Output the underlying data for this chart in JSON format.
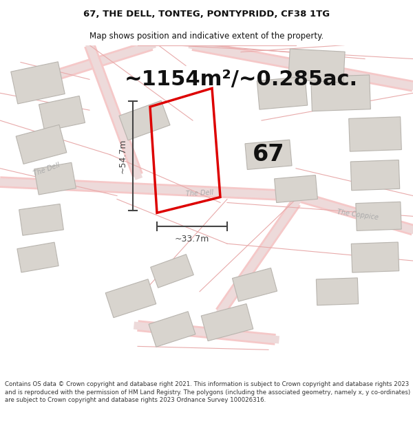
{
  "title_line1": "67, THE DELL, TONTEG, PONTYPRIDD, CF38 1TG",
  "title_line2": "Map shows position and indicative extent of the property.",
  "area_text": "~1154m²/~0.285ac.",
  "label_67": "67",
  "dim_vertical": "~54.7m",
  "dim_horizontal": "~33.7m",
  "footer_text": "Contains OS data © Crown copyright and database right 2021. This information is subject to Crown copyright and database rights 2023 and is reproduced with the permission of HM Land Registry. The polygons (including the associated geometry, namely x, y co-ordinates) are subject to Crown copyright and database rights 2023 Ordnance Survey 100026316.",
  "bg_color": "#ffffff",
  "map_bg": "#ffffff",
  "road_color": "#f5c8c8",
  "road_fill": "#f0d8d8",
  "plot_outline_color": "#dd0000",
  "building_fill": "#d8d4ce",
  "building_edge": "#b8b4ae",
  "road_label_color": "#aaaaaa",
  "text_color": "#111111",
  "footer_color": "#333333",
  "dim_color": "#444444",
  "title_fontsize": 9.5,
  "subtitle_fontsize": 8.5,
  "area_fontsize": 22,
  "label_fontsize": 24,
  "dim_fontsize": 9,
  "footer_fontsize": 6.2,
  "road_label_fontsize": 7
}
